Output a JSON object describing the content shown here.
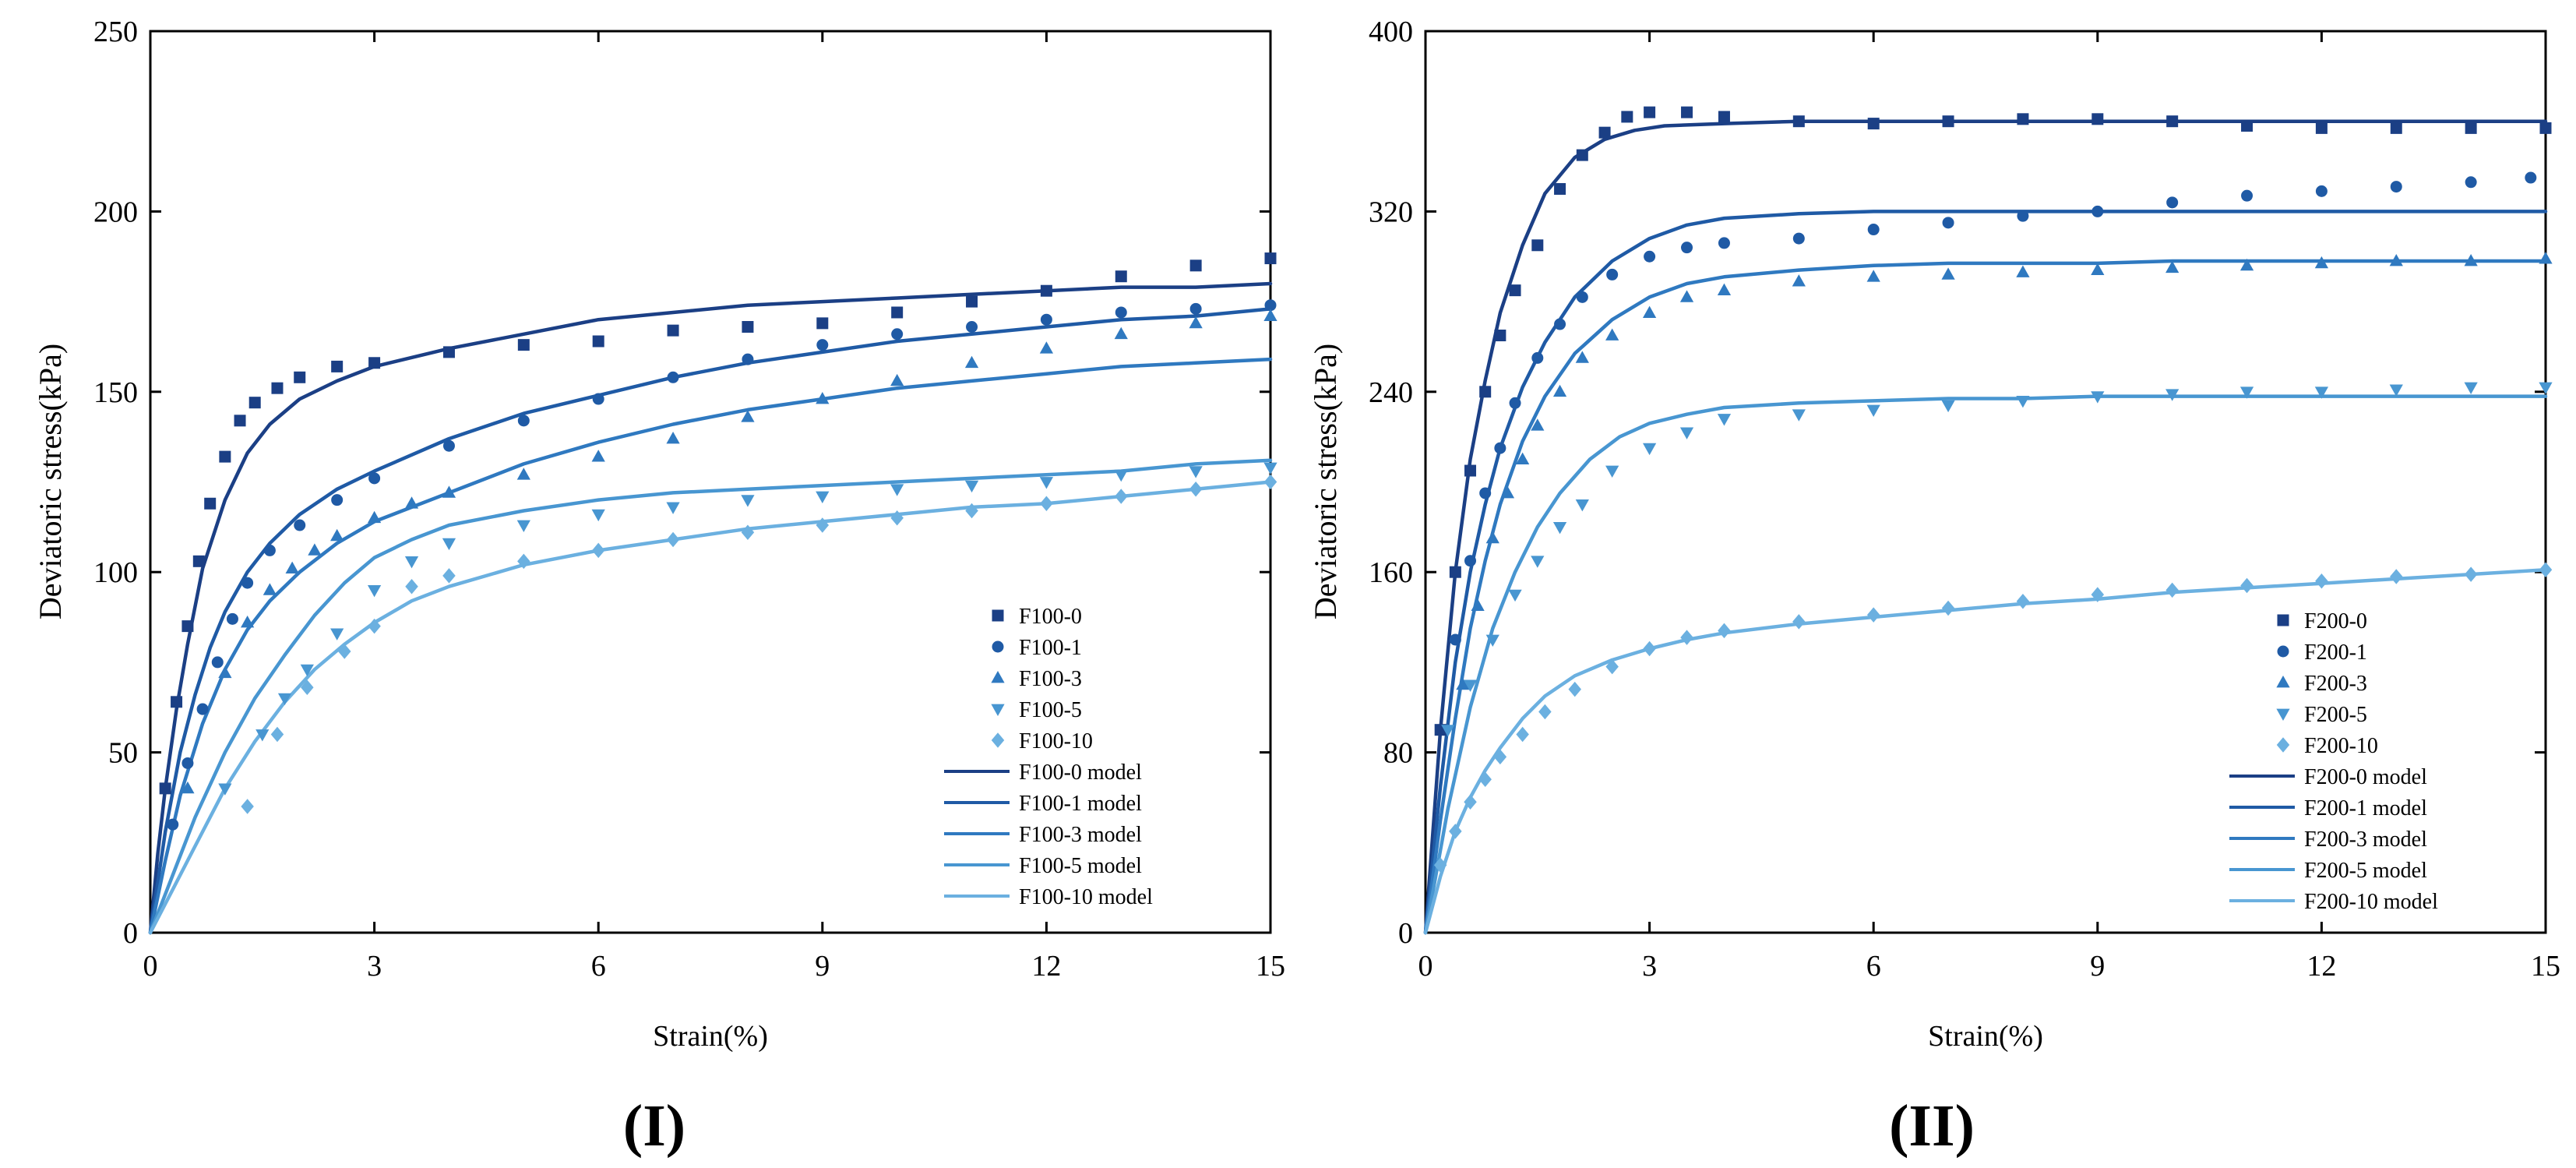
{
  "colors": {
    "series": [
      "#1b3f85",
      "#1f5aa5",
      "#2f79c0",
      "#4896d1",
      "#6bb0e0"
    ],
    "axis": "#000000"
  },
  "chart_data": [
    {
      "panel_label": "(I)",
      "type": "scatter",
      "title": "",
      "xlabel": "Strain(%)",
      "ylabel": "Deviatoric stress(kPa)",
      "xlim": [
        0,
        15
      ],
      "ylim": [
        0,
        250
      ],
      "xticks": [
        0,
        3,
        6,
        9,
        12,
        15
      ],
      "yticks": [
        0,
        50,
        100,
        150,
        200,
        250
      ],
      "grid": false,
      "legend_position": "bottom-right",
      "series": [
        {
          "name": "F100-0",
          "marker": "square",
          "x": [
            0.2,
            0.35,
            0.5,
            0.65,
            0.8,
            1.0,
            1.2,
            1.4,
            1.7,
            2.0,
            2.5,
            3.0,
            4.0,
            5.0,
            6.0,
            7.0,
            8.0,
            9.0,
            10.0,
            11.0,
            12.0,
            13.0,
            14.0,
            15.0
          ],
          "y": [
            40,
            64,
            85,
            103,
            119,
            132,
            142,
            147,
            151,
            154,
            157,
            158,
            161,
            163,
            164,
            167,
            168,
            169,
            172,
            175,
            178,
            182,
            185,
            187
          ]
        },
        {
          "name": "F100-1",
          "marker": "circle",
          "x": [
            0.3,
            0.5,
            0.7,
            0.9,
            1.1,
            1.3,
            1.6,
            2.0,
            2.5,
            3.0,
            4.0,
            5.0,
            6.0,
            7.0,
            8.0,
            9.0,
            10.0,
            11.0,
            12.0,
            13.0,
            14.0,
            15.0
          ],
          "y": [
            30,
            47,
            62,
            75,
            87,
            97,
            106,
            113,
            120,
            126,
            135,
            142,
            148,
            154,
            159,
            163,
            166,
            168,
            170,
            172,
            173,
            174
          ]
        },
        {
          "name": "F100-3",
          "marker": "triangle-up",
          "x": [
            0.5,
            1.0,
            1.3,
            1.6,
            1.9,
            2.2,
            2.5,
            3.0,
            3.5,
            4.0,
            5.0,
            6.0,
            7.0,
            8.0,
            9.0,
            10.0,
            11.0,
            12.0,
            13.0,
            14.0,
            15.0
          ],
          "y": [
            40,
            72,
            86,
            95,
            101,
            106,
            110,
            115,
            119,
            122,
            127,
            132,
            137,
            143,
            148,
            153,
            158,
            162,
            166,
            169,
            171
          ]
        },
        {
          "name": "F100-5",
          "marker": "triangle-down",
          "x": [
            1.0,
            1.5,
            1.8,
            2.1,
            2.5,
            3.0,
            3.5,
            4.0,
            5.0,
            6.0,
            7.0,
            8.0,
            9.0,
            10.0,
            11.0,
            12.0,
            13.0,
            14.0,
            15.0
          ],
          "y": [
            40,
            55,
            65,
            73,
            83,
            95,
            103,
            108,
            113,
            116,
            118,
            120,
            121,
            123,
            124,
            125,
            127,
            128,
            129
          ]
        },
        {
          "name": "F100-10",
          "marker": "diamond",
          "x": [
            1.3,
            1.7,
            2.1,
            2.6,
            3.0,
            3.5,
            4.0,
            5.0,
            6.0,
            7.0,
            8.0,
            9.0,
            10.0,
            11.0,
            12.0,
            13.0,
            14.0,
            15.0
          ],
          "y": [
            35,
            55,
            68,
            78,
            85,
            96,
            99,
            103,
            106,
            109,
            111,
            113,
            115,
            117,
            119,
            121,
            123,
            125
          ]
        },
        {
          "name": "F100-0 model",
          "style": "line",
          "x": [
            0,
            0.1,
            0.2,
            0.35,
            0.5,
            0.7,
            1.0,
            1.3,
            1.6,
            2.0,
            2.5,
            3.0,
            4.0,
            5.0,
            6.0,
            7.0,
            8.0,
            9.0,
            10.0,
            11.0,
            12.0,
            13.0,
            14.0,
            15.0
          ],
          "y": [
            0,
            22,
            40,
            62,
            80,
            101,
            120,
            133,
            141,
            148,
            153,
            157,
            162,
            166,
            170,
            172,
            174,
            175,
            176,
            177,
            178,
            179,
            179,
            180
          ]
        },
        {
          "name": "F100-1 model",
          "style": "line",
          "x": [
            0,
            0.2,
            0.4,
            0.6,
            0.8,
            1.0,
            1.3,
            1.6,
            2.0,
            2.5,
            3.0,
            4.0,
            5.0,
            6.0,
            7.0,
            8.0,
            9.0,
            10.0,
            11.0,
            12.0,
            13.0,
            14.0,
            15.0
          ],
          "y": [
            0,
            28,
            50,
            66,
            79,
            89,
            100,
            108,
            116,
            123,
            128,
            137,
            144,
            149,
            154,
            158,
            161,
            164,
            166,
            168,
            170,
            171,
            173
          ]
        },
        {
          "name": "F100-3 model",
          "style": "line",
          "x": [
            0,
            0.2,
            0.4,
            0.7,
            1.0,
            1.3,
            1.6,
            2.0,
            2.5,
            3.0,
            4.0,
            5.0,
            6.0,
            7.0,
            8.0,
            9.0,
            10.0,
            11.0,
            12.0,
            13.0,
            14.0,
            15.0
          ],
          "y": [
            0,
            20,
            38,
            58,
            73,
            84,
            92,
            100,
            108,
            114,
            122,
            130,
            136,
            141,
            145,
            148,
            151,
            153,
            155,
            157,
            158,
            159
          ]
        },
        {
          "name": "F100-5 model",
          "style": "line",
          "x": [
            0,
            0.3,
            0.6,
            1.0,
            1.4,
            1.8,
            2.2,
            2.6,
            3.0,
            3.5,
            4.0,
            5.0,
            6.0,
            7.0,
            8.0,
            9.0,
            10.0,
            11.0,
            12.0,
            13.0,
            14.0,
            15.0
          ],
          "y": [
            0,
            16,
            32,
            50,
            65,
            77,
            88,
            97,
            104,
            109,
            113,
            117,
            120,
            122,
            123,
            124,
            125,
            126,
            127,
            128,
            130,
            131
          ]
        },
        {
          "name": "F100-10 model",
          "style": "line",
          "x": [
            0,
            0.3,
            0.6,
            1.0,
            1.4,
            1.8,
            2.2,
            2.6,
            3.0,
            3.5,
            4.0,
            5.0,
            6.0,
            7.0,
            8.0,
            9.0,
            10.0,
            11.0,
            12.0,
            13.0,
            14.0,
            15.0
          ],
          "y": [
            0,
            12,
            24,
            40,
            53,
            64,
            73,
            80,
            86,
            92,
            96,
            102,
            106,
            109,
            112,
            114,
            116,
            118,
            119,
            121,
            123,
            125
          ]
        }
      ]
    },
    {
      "panel_label": "(II)",
      "type": "scatter",
      "title": "",
      "xlabel": "Strain(%)",
      "ylabel": "Deviatoric stress(kPa)",
      "xlim": [
        0,
        15
      ],
      "ylim": [
        0,
        400
      ],
      "xticks": [
        0,
        3,
        6,
        9,
        12,
        15
      ],
      "yticks": [
        0,
        80,
        160,
        240,
        320,
        400
      ],
      "grid": false,
      "legend_position": "bottom-right",
      "series": [
        {
          "name": "F200-0",
          "marker": "square",
          "x": [
            0.2,
            0.4,
            0.6,
            0.8,
            1.0,
            1.2,
            1.5,
            1.8,
            2.1,
            2.4,
            2.7,
            3.0,
            3.5,
            4.0,
            5.0,
            6.0,
            7.0,
            8.0,
            9.0,
            10.0,
            11.0,
            12.0,
            13.0,
            14.0,
            15.0
          ],
          "y": [
            90,
            160,
            205,
            240,
            265,
            285,
            305,
            330,
            345,
            355,
            362,
            364,
            364,
            362,
            360,
            359,
            360,
            361,
            361,
            360,
            358,
            357,
            357,
            357,
            357
          ]
        },
        {
          "name": "F200-1",
          "marker": "circle",
          "x": [
            0.4,
            0.6,
            0.8,
            1.0,
            1.2,
            1.5,
            1.8,
            2.1,
            2.5,
            3.0,
            3.5,
            4.0,
            5.0,
            6.0,
            7.0,
            8.0,
            9.0,
            10.0,
            11.0,
            12.0,
            13.0,
            14.0,
            14.8
          ],
          "y": [
            130,
            165,
            195,
            215,
            235,
            255,
            270,
            282,
            292,
            300,
            304,
            306,
            308,
            312,
            315,
            318,
            320,
            324,
            327,
            329,
            331,
            333,
            335
          ]
        },
        {
          "name": "F200-3",
          "marker": "triangle-up",
          "x": [
            0.5,
            0.7,
            0.9,
            1.1,
            1.3,
            1.5,
            1.8,
            2.1,
            2.5,
            3.0,
            3.5,
            4.0,
            5.0,
            6.0,
            7.0,
            8.0,
            9.0,
            10.0,
            11.0,
            12.0,
            13.0,
            14.0,
            15.0
          ],
          "y": [
            110,
            145,
            175,
            195,
            210,
            225,
            240,
            255,
            265,
            275,
            282,
            285,
            289,
            291,
            292,
            293,
            294,
            295,
            296,
            297,
            298,
            298,
            299
          ]
        },
        {
          "name": "F200-5",
          "marker": "triangle-down",
          "x": [
            0.3,
            0.6,
            0.9,
            1.2,
            1.5,
            1.8,
            2.1,
            2.5,
            3.0,
            3.5,
            4.0,
            5.0,
            6.0,
            7.0,
            8.0,
            9.0,
            10.0,
            11.0,
            12.0,
            13.0,
            14.0,
            15.0
          ],
          "y": [
            90,
            110,
            130,
            150,
            165,
            180,
            190,
            205,
            215,
            222,
            228,
            230,
            232,
            234,
            236,
            238,
            239,
            240,
            240,
            241,
            242,
            242
          ]
        },
        {
          "name": "F200-10",
          "marker": "diamond",
          "x": [
            0.2,
            0.4,
            0.6,
            0.8,
            1.0,
            1.3,
            1.6,
            2.0,
            2.5,
            3.0,
            3.5,
            4.0,
            5.0,
            6.0,
            7.0,
            8.0,
            9.0,
            10.0,
            11.0,
            12.0,
            13.0,
            14.0,
            15.0
          ],
          "y": [
            30,
            45,
            58,
            68,
            78,
            88,
            98,
            108,
            118,
            126,
            131,
            134,
            138,
            141,
            144,
            147,
            150,
            152,
            154,
            156,
            158,
            159,
            161
          ]
        },
        {
          "name": "F200-0 model",
          "style": "line",
          "x": [
            0,
            0.2,
            0.4,
            0.6,
            0.8,
            1.0,
            1.3,
            1.6,
            2.0,
            2.4,
            2.8,
            3.2,
            4.0,
            5.0,
            6.0,
            7.0,
            8.0,
            9.0,
            10.0,
            11.0,
            12.0,
            13.0,
            14.0,
            15.0
          ],
          "y": [
            0,
            90,
            160,
            210,
            245,
            275,
            305,
            328,
            344,
            352,
            356,
            358,
            359,
            360,
            360,
            360,
            360,
            360,
            360,
            360,
            360,
            360,
            360,
            360
          ]
        },
        {
          "name": "F200-1 model",
          "style": "line",
          "x": [
            0,
            0.2,
            0.4,
            0.6,
            0.8,
            1.0,
            1.3,
            1.6,
            2.0,
            2.5,
            3.0,
            3.5,
            4.0,
            5.0,
            6.0,
            7.0,
            8.0,
            9.0,
            10.0,
            11.0,
            12.0,
            13.0,
            14.0,
            15.0
          ],
          "y": [
            0,
            65,
            120,
            160,
            190,
            215,
            242,
            262,
            282,
            298,
            308,
            314,
            317,
            319,
            320,
            320,
            320,
            320,
            320,
            320,
            320,
            320,
            320,
            320
          ]
        },
        {
          "name": "F200-3 model",
          "style": "line",
          "x": [
            0,
            0.2,
            0.4,
            0.6,
            0.8,
            1.0,
            1.3,
            1.6,
            2.0,
            2.5,
            3.0,
            3.5,
            4.0,
            5.0,
            6.0,
            7.0,
            8.0,
            9.0,
            10.0,
            11.0,
            12.0,
            13.0,
            14.0,
            15.0
          ],
          "y": [
            0,
            50,
            95,
            135,
            165,
            190,
            218,
            238,
            257,
            272,
            282,
            288,
            291,
            294,
            296,
            297,
            297,
            297,
            298,
            298,
            298,
            298,
            298,
            298
          ]
        },
        {
          "name": "F200-5 model",
          "style": "line",
          "x": [
            0,
            0.3,
            0.6,
            0.9,
            1.2,
            1.5,
            1.8,
            2.2,
            2.6,
            3.0,
            3.5,
            4.0,
            5.0,
            6.0,
            7.0,
            8.0,
            9.0,
            10.0,
            11.0,
            12.0,
            13.0,
            14.0,
            15.0
          ],
          "y": [
            0,
            55,
            100,
            135,
            160,
            180,
            195,
            210,
            220,
            226,
            230,
            233,
            235,
            236,
            237,
            237,
            238,
            238,
            238,
            238,
            238,
            238,
            238
          ]
        },
        {
          "name": "F200-10 model",
          "style": "line",
          "x": [
            0,
            0.2,
            0.4,
            0.6,
            0.8,
            1.0,
            1.3,
            1.6,
            2.0,
            2.5,
            3.0,
            3.5,
            4.0,
            5.0,
            6.0,
            7.0,
            8.0,
            9.0,
            10.0,
            11.0,
            12.0,
            13.0,
            14.0,
            15.0
          ],
          "y": [
            0,
            25,
            45,
            60,
            72,
            82,
            95,
            105,
            114,
            121,
            126,
            130,
            133,
            137,
            140,
            143,
            146,
            148,
            151,
            153,
            155,
            157,
            159,
            161
          ]
        }
      ]
    }
  ]
}
